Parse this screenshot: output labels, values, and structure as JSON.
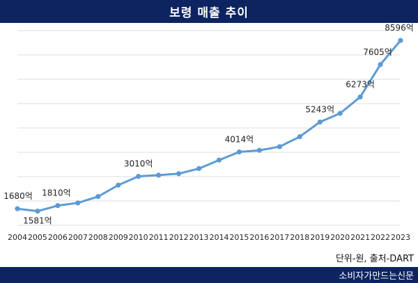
{
  "header": {
    "title": "보령 매출 추이"
  },
  "footer": {
    "source_note": "단위-원, 출처-DART",
    "publisher": "소비자가만드는신문"
  },
  "colors": {
    "header_bg": "#0d2461",
    "line": "#5b9bd5",
    "grid": "#dcdcdc"
  },
  "chart_data": {
    "type": "line",
    "title": "보령 매출 추이",
    "xlabel": "",
    "ylabel": "",
    "ylim": [
      1000,
      9000
    ],
    "grid": true,
    "categories": [
      "2004",
      "2005",
      "2006",
      "2007",
      "2008",
      "2009",
      "2010",
      "2011",
      "2012",
      "2013",
      "2014",
      "2015",
      "2016",
      "2017",
      "2018",
      "2019",
      "2020",
      "2021",
      "2022",
      "2023"
    ],
    "series": [
      {
        "values": [
          1680,
          1581,
          1810,
          1920,
          2180,
          2650,
          3010,
          3060,
          3120,
          3330,
          3680,
          4014,
          4080,
          4230,
          4640,
          5243,
          5600,
          6273,
          7605,
          8596
        ]
      }
    ],
    "data_labels": [
      {
        "index": 0,
        "text": "1680억"
      },
      {
        "index": 1,
        "text": "1581억"
      },
      {
        "index": 2,
        "text": "1810억"
      },
      {
        "index": 6,
        "text": "3010억"
      },
      {
        "index": 11,
        "text": "4014억"
      },
      {
        "index": 15,
        "text": "5243억"
      },
      {
        "index": 17,
        "text": "6273억"
      },
      {
        "index": 18,
        "text": "7605억"
      },
      {
        "index": 19,
        "text": "8596억"
      }
    ]
  }
}
